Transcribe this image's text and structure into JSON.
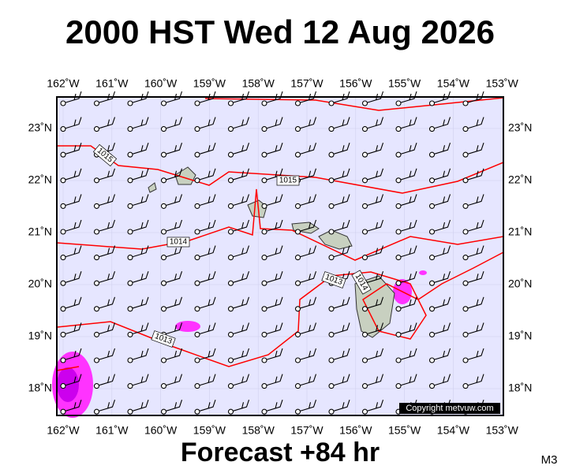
{
  "header": {
    "title": "2000 HST Wed 12 Aug 2026"
  },
  "map": {
    "lon_labels": [
      "162˚W",
      "161˚W",
      "160˚W",
      "159˚W",
      "158˚W",
      "157˚W",
      "156˚W",
      "155˚W",
      "154˚W",
      "153˚W"
    ],
    "lat_labels": [
      "23˚N",
      "22˚N",
      "21˚N",
      "20˚N",
      "19˚N",
      "18˚N"
    ],
    "isobar_labels": [
      "1015",
      "1015",
      "1014",
      "1013",
      "1013",
      "1014"
    ],
    "copyright": "Copyright metvuw.com"
  },
  "footer": {
    "forecast": "Forecast +84 hr",
    "model": "M3"
  }
}
